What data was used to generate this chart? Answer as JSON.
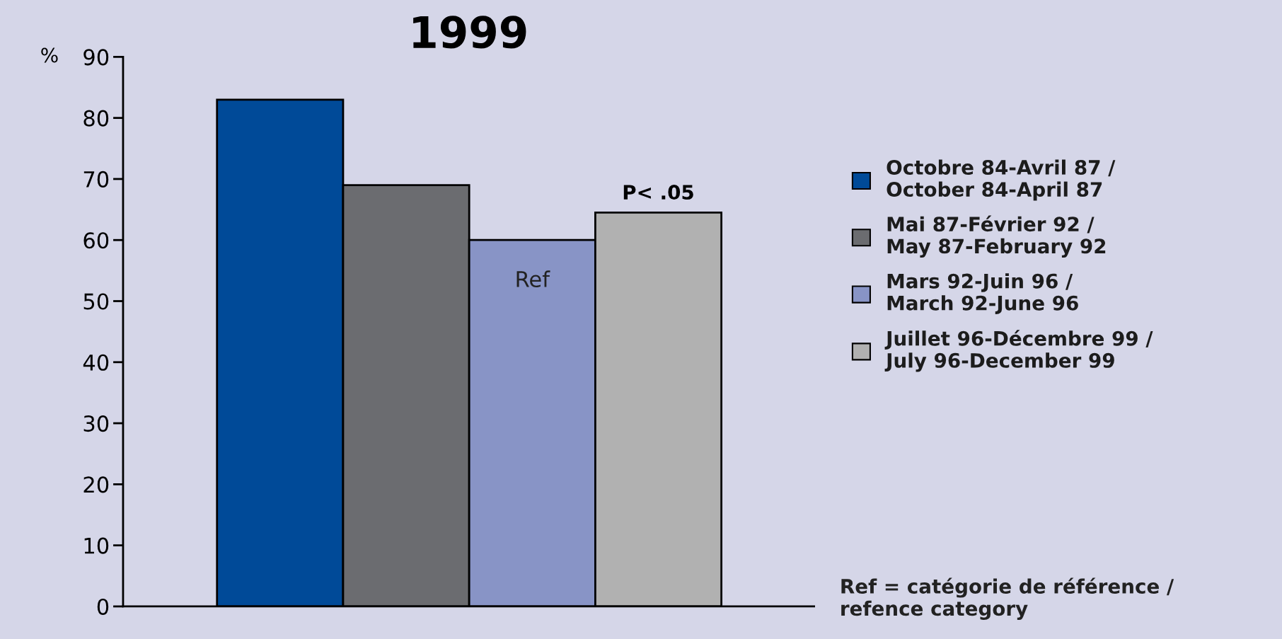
{
  "chart_data": {
    "type": "bar",
    "title": "1999",
    "ylabel": "%",
    "categories": [
      null
    ],
    "series": [
      {
        "name": "Octobre 84-Avril 87 /\nOctober 84-April 87",
        "color": "#004a98",
        "values": [
          83
        ]
      },
      {
        "name": "Mai 87-Février 92 /\nMay 87-February 92",
        "color": "#6b6c70",
        "values": [
          69
        ]
      },
      {
        "name": "Mars 92-Juin 96 /\nMarch 92-June 96",
        "color": "#8894c6",
        "values": [
          60
        ]
      },
      {
        "name": "Juillet 96-Décembre 99 /\nJuly 96-December 99",
        "color": "#b1b1b1",
        "values": [
          64.5
        ]
      }
    ],
    "annotations": [
      "P< .05",
      "Ref",
      "Ref = catégorie de référence /\nrefence category"
    ],
    "ylim": [
      0,
      90
    ],
    "yticks": [
      0,
      10,
      20,
      30,
      40,
      50,
      60,
      70,
      80,
      90
    ],
    "grid": false,
    "legend": "right"
  }
}
